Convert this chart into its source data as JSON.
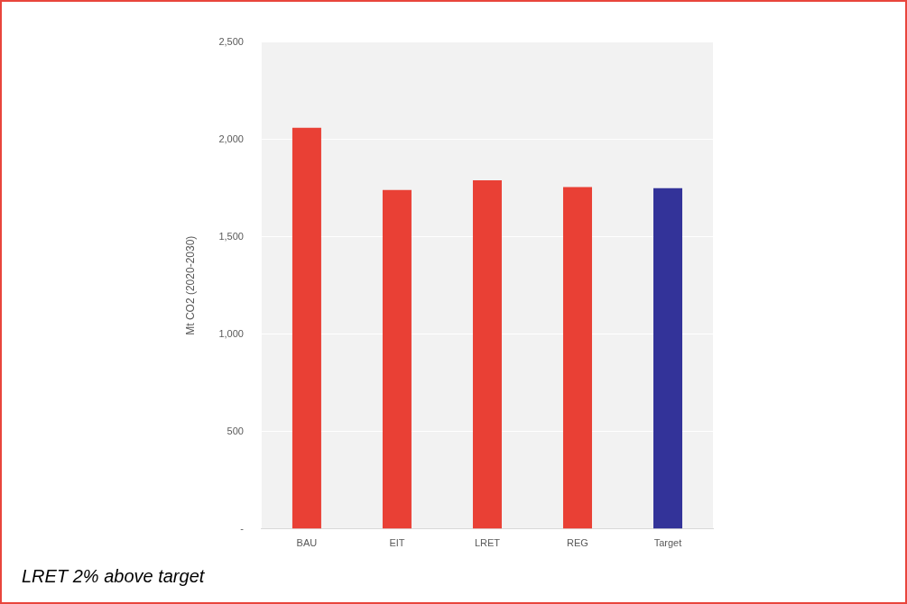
{
  "chart_data": {
    "type": "bar",
    "ylabel": "Mt CO2 (2020-2030)",
    "categories": [
      "BAU",
      "EIT",
      "LRET",
      "REG",
      "Target"
    ],
    "values": [
      2060,
      1740,
      1790,
      1755,
      1750
    ],
    "colors": [
      "#e94035",
      "#e94035",
      "#e94035",
      "#e94035",
      "#333399"
    ],
    "ylim": [
      0,
      2500
    ],
    "yticks": [
      {
        "value": 0,
        "label": "-"
      },
      {
        "value": 500,
        "label": "500"
      },
      {
        "value": 1000,
        "label": "1,000"
      },
      {
        "value": 1500,
        "label": "1,500"
      },
      {
        "value": 2000,
        "label": "2,000"
      },
      {
        "value": 2500,
        "label": "2,500"
      }
    ],
    "grid": "y",
    "annotations": [
      "LRET 2% above target"
    ]
  }
}
